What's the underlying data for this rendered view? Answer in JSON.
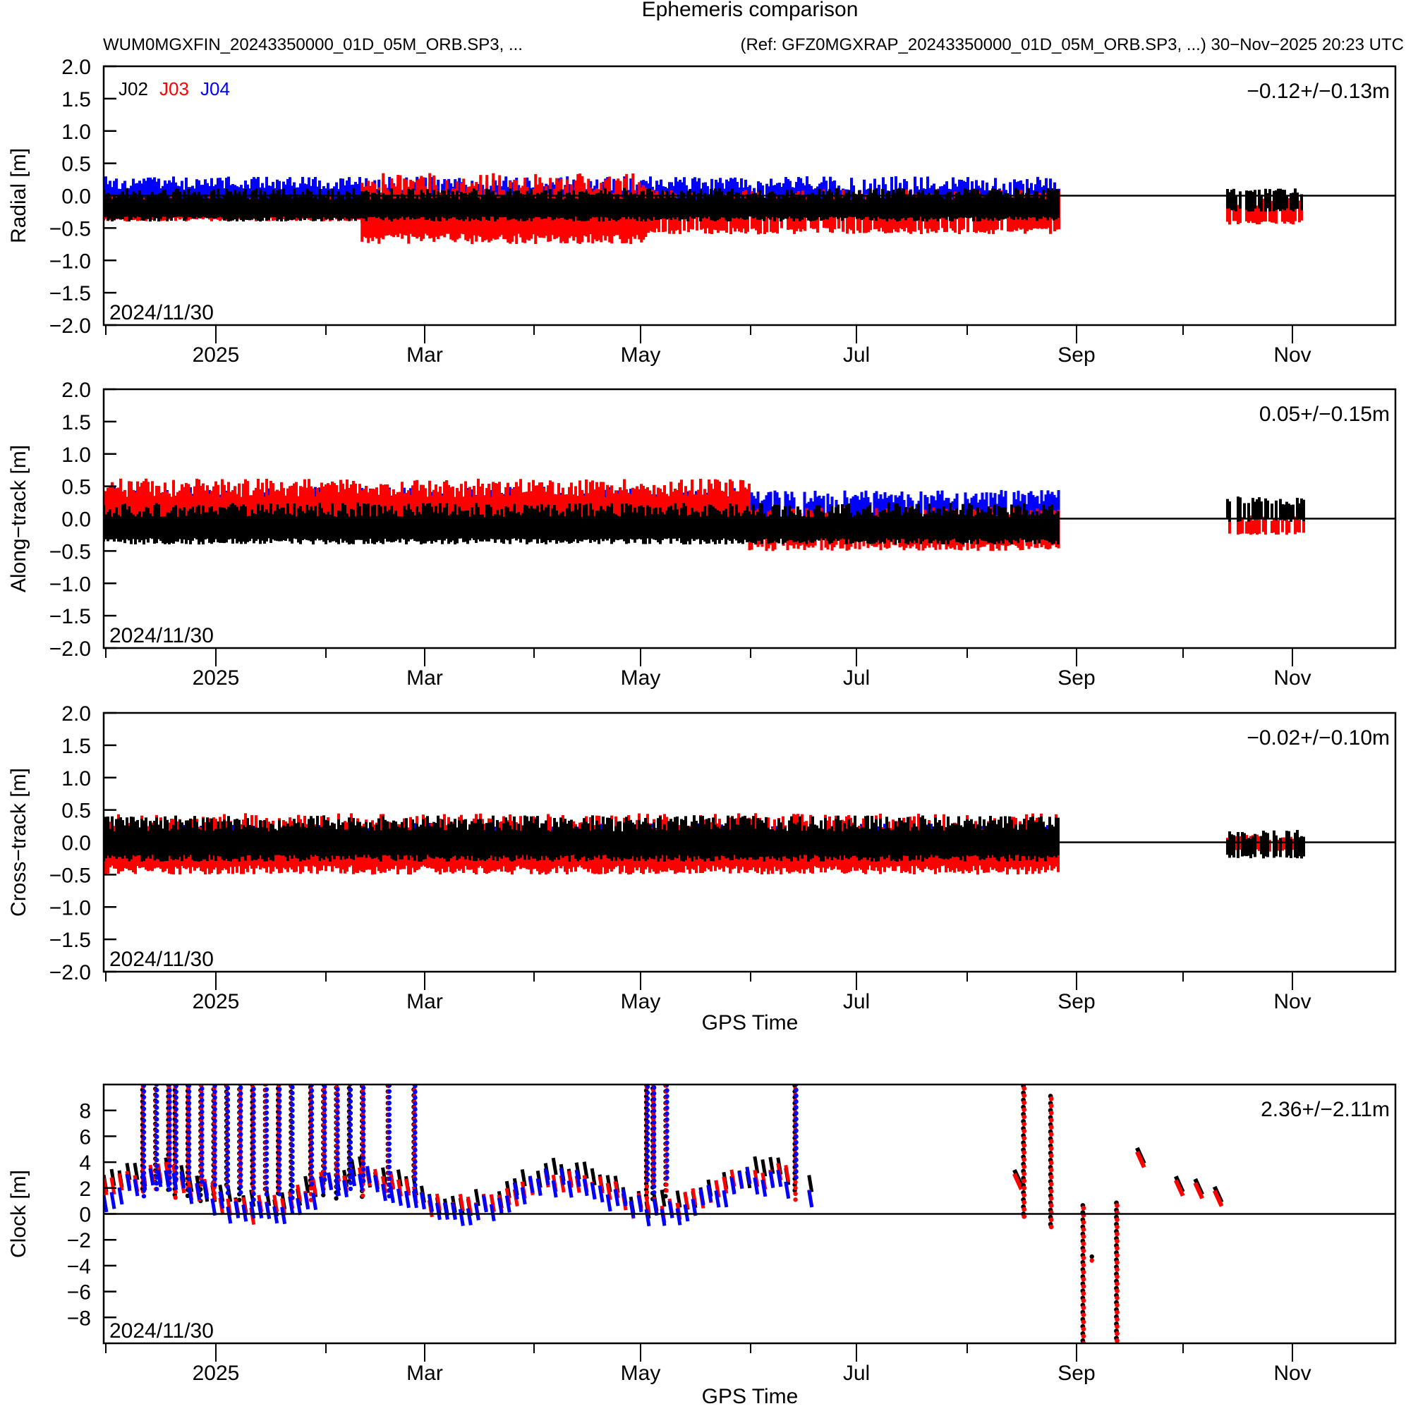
{
  "figure": {
    "title": "Ephemeris comparison",
    "subtitle_left": "WUM0MGXFIN_20243350000_01D_05M_ORB.SP3, ...",
    "subtitle_right": "(Ref: GFZ0MGXRAP_20243350000_01D_05M_ORB.SP3, ...) 30−Nov−2025 20:23 UTC",
    "legend": [
      {
        "label": "J02",
        "color": "#000000"
      },
      {
        "label": "J03",
        "color": "#ff0000"
      },
      {
        "label": "J04",
        "color": "#0000ff"
      }
    ],
    "start_date_label": "2024/11/30",
    "xlabel": "GPS Time"
  },
  "chart_data": [
    {
      "type": "scatter",
      "title": "Radial",
      "xlabel": "",
      "ylabel": "Radial [m]",
      "ylim": [
        -2.0,
        2.0
      ],
      "yticks": [
        2.0,
        1.5,
        1.0,
        0.5,
        0.0,
        -0.5,
        -1.0,
        -1.5,
        -2.0
      ],
      "ytick_labels": [
        "2.0",
        "1.5",
        "1.0",
        "0.5",
        "0.0",
        "−0.5",
        "−1.0",
        "−1.5",
        "−2.0"
      ],
      "x_range": [
        "2024-11-30",
        "2025-11-30"
      ],
      "xtick_labels": [
        "2025",
        "Mar",
        "May",
        "Jul",
        "Sep",
        "Nov"
      ],
      "stats_label": "−0.12+/−0.13m",
      "date_label": "2024/11/30",
      "zero_line": true,
      "legend_position": "upper left",
      "series": [
        {
          "name": "J02",
          "color": "#000000",
          "segments": [
            {
              "x0": 0.0,
              "x1": 0.74,
              "min": -0.4,
              "max": 0.12
            },
            {
              "x0": 0.87,
              "x1": 0.93,
              "min": -0.25,
              "max": 0.12
            }
          ]
        },
        {
          "name": "J03",
          "color": "#ff0000",
          "segments": [
            {
              "x0": 0.0,
              "x1": 0.2,
              "min": -0.4,
              "max": 0.0
            },
            {
              "x0": 0.2,
              "x1": 0.42,
              "min": -0.75,
              "max": 0.35
            },
            {
              "x0": 0.42,
              "x1": 0.74,
              "min": -0.6,
              "max": 0.1
            },
            {
              "x0": 0.87,
              "x1": 0.93,
              "min": -0.45,
              "max": 0.0
            }
          ]
        },
        {
          "name": "J04",
          "color": "#0000ff",
          "segments": [
            {
              "x0": 0.0,
              "x1": 0.2,
              "min": -0.3,
              "max": 0.3
            },
            {
              "x0": 0.2,
              "x1": 0.42,
              "min": -0.45,
              "max": 0.3
            },
            {
              "x0": 0.42,
              "x1": 0.74,
              "min": -0.35,
              "max": 0.3
            }
          ]
        }
      ]
    },
    {
      "type": "scatter",
      "title": "Along-track",
      "xlabel": "",
      "ylabel": "Along−track [m]",
      "ylim": [
        -2.0,
        2.0
      ],
      "yticks": [
        2.0,
        1.5,
        1.0,
        0.5,
        0.0,
        -0.5,
        -1.0,
        -1.5,
        -2.0
      ],
      "ytick_labels": [
        "2.0",
        "1.5",
        "1.0",
        "0.5",
        "0.0",
        "−0.5",
        "−1.0",
        "−1.5",
        "−2.0"
      ],
      "x_range": [
        "2024-11-30",
        "2025-11-30"
      ],
      "xtick_labels": [
        "2025",
        "Mar",
        "May",
        "Jul",
        "Sep",
        "Nov"
      ],
      "stats_label": "0.05+/−0.15m",
      "date_label": "2024/11/30",
      "zero_line": true,
      "series": [
        {
          "name": "J02",
          "color": "#000000",
          "segments": [
            {
              "x0": 0.0,
              "x1": 0.74,
              "min": -0.4,
              "max": 0.25
            },
            {
              "x0": 0.87,
              "x1": 0.93,
              "min": -0.05,
              "max": 0.35
            }
          ]
        },
        {
          "name": "J03",
          "color": "#ff0000",
          "segments": [
            {
              "x0": 0.0,
              "x1": 0.5,
              "min": -0.2,
              "max": 0.62
            },
            {
              "x0": 0.5,
              "x1": 0.74,
              "min": -0.5,
              "max": 0.2
            },
            {
              "x0": 0.87,
              "x1": 0.93,
              "min": -0.25,
              "max": 0.05
            }
          ]
        },
        {
          "name": "J04",
          "color": "#0000ff",
          "segments": [
            {
              "x0": 0.0,
              "x1": 0.5,
              "min": -0.3,
              "max": 0.5
            },
            {
              "x0": 0.5,
              "x1": 0.74,
              "min": -0.2,
              "max": 0.45
            }
          ]
        }
      ]
    },
    {
      "type": "scatter",
      "title": "Cross-track",
      "xlabel": "GPS Time",
      "ylabel": "Cross−track [m]",
      "ylim": [
        -2.0,
        2.0
      ],
      "yticks": [
        2.0,
        1.5,
        1.0,
        0.5,
        0.0,
        -0.5,
        -1.0,
        -1.5,
        -2.0
      ],
      "ytick_labels": [
        "2.0",
        "1.5",
        "1.0",
        "0.5",
        "0.0",
        "−0.5",
        "−1.0",
        "−1.5",
        "−2.0"
      ],
      "x_range": [
        "2024-11-30",
        "2025-11-30"
      ],
      "xtick_labels": [
        "2025",
        "Mar",
        "May",
        "Jul",
        "Sep",
        "Nov"
      ],
      "stats_label": "−0.02+/−0.10m",
      "date_label": "2024/11/30",
      "zero_line": true,
      "series": [
        {
          "name": "J02",
          "color": "#000000",
          "segments": [
            {
              "x0": 0.0,
              "x1": 0.74,
              "min": -0.3,
              "max": 0.42
            },
            {
              "x0": 0.87,
              "x1": 0.93,
              "min": -0.25,
              "max": 0.2
            }
          ]
        },
        {
          "name": "J03",
          "color": "#ff0000",
          "segments": [
            {
              "x0": 0.0,
              "x1": 0.74,
              "min": -0.5,
              "max": 0.45
            },
            {
              "x0": 0.87,
              "x1": 0.93,
              "min": -0.15,
              "max": 0.12
            }
          ]
        },
        {
          "name": "J04",
          "color": "#0000ff",
          "segments": [
            {
              "x0": 0.0,
              "x1": 0.74,
              "min": -0.3,
              "max": 0.3
            }
          ]
        }
      ]
    },
    {
      "type": "scatter",
      "title": "Clock",
      "xlabel": "GPS Time",
      "ylabel": "Clock [m]",
      "ylim": [
        -10,
        10
      ],
      "yticks": [
        8,
        6,
        4,
        2,
        0,
        -2,
        -4,
        -6,
        -8
      ],
      "ytick_labels": [
        "8",
        "6",
        "4",
        "2",
        "0",
        "−2",
        "−4",
        "−6",
        "−8"
      ],
      "x_range": [
        "2024-11-30",
        "2025-11-30"
      ],
      "xtick_labels": [
        "2025",
        "Mar",
        "May",
        "Jul",
        "Sep",
        "Nov"
      ],
      "stats_label": "2.36+/−2.11m",
      "date_label": "2024/11/30",
      "zero_line": true,
      "series": [
        {
          "name": "J02",
          "color": "#000000",
          "typical_range": [
            -1.5,
            4.5
          ],
          "vertical_spikes_to_edge": true
        },
        {
          "name": "J03",
          "color": "#ff0000",
          "typical_range": [
            -1.5,
            4.0
          ],
          "vertical_spikes_to_edge": true,
          "late_spikes_to": [
            -10,
            10
          ]
        },
        {
          "name": "J04",
          "color": "#0000ff",
          "typical_range": [
            -1.5,
            4.0
          ],
          "vertical_spikes_to_edge": true
        }
      ]
    }
  ]
}
